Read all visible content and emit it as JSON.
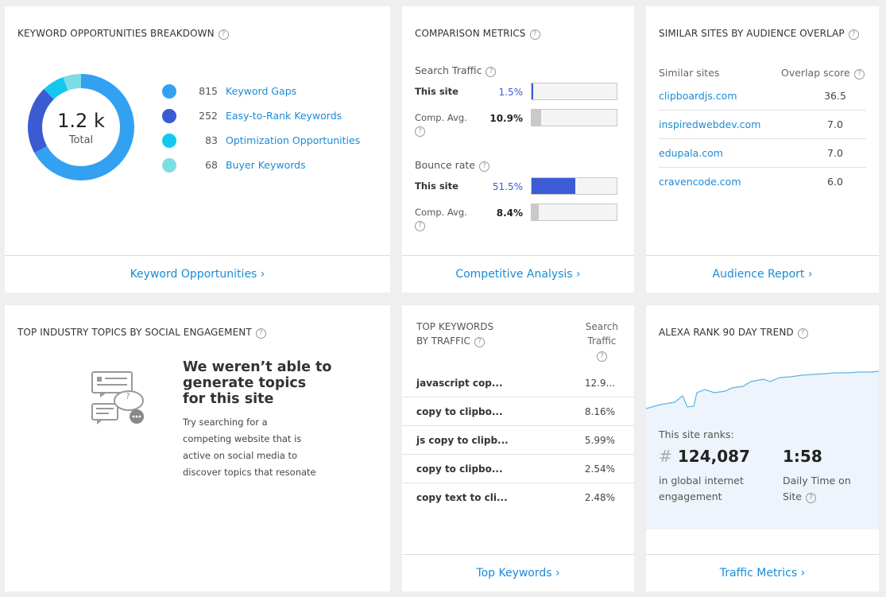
{
  "kw_breakdown": {
    "title": "KEYWORD OPPORTUNITIES BREAKDOWN",
    "total_value": "1.2 k",
    "total_label": "Total",
    "items": [
      {
        "count": "815",
        "label": "Keyword Gaps",
        "color": "#33a1f2"
      },
      {
        "count": "252",
        "label": "Easy-to-Rank Keywords",
        "color": "#3a5bd1"
      },
      {
        "count": "83",
        "label": "Optimization Opportunities",
        "color": "#13c8ee"
      },
      {
        "count": "68",
        "label": "Buyer Keywords",
        "color": "#7ddde5"
      }
    ],
    "footer": "Keyword Opportunities ›"
  },
  "comparison": {
    "title": "COMPARISON METRICS",
    "search_traffic": {
      "label": "Search Traffic",
      "this_site_label": "This site",
      "this_site_value": "1.5%",
      "this_site_fraction": 0.015,
      "avg_label": "Comp. Avg.",
      "avg_value": "10.9%",
      "avg_fraction": 0.109
    },
    "bounce_rate": {
      "label": "Bounce rate",
      "this_site_label": "This site",
      "this_site_value": "51.5%",
      "this_site_fraction": 0.515,
      "avg_label": "Comp. Avg.",
      "avg_value": "8.4%",
      "avg_fraction": 0.084
    },
    "footer": "Competitive Analysis ›",
    "colors": {
      "this_site": "#3d5bd6",
      "avg": "#c9c9c9"
    }
  },
  "similar_sites": {
    "title": "SIMILAR SITES BY AUDIENCE OVERLAP",
    "col_site": "Similar sites",
    "col_score": "Overlap score",
    "rows": [
      {
        "site": "clipboardjs.com",
        "score": "36.5"
      },
      {
        "site": "inspiredwebdev.com",
        "score": "7.0"
      },
      {
        "site": "edupala.com",
        "score": "7.0"
      },
      {
        "site": "cravencode.com",
        "score": "6.0"
      }
    ],
    "footer": "Audience Report ›"
  },
  "topics": {
    "title": "TOP INDUSTRY TOPICS BY SOCIAL ENGAGEMENT",
    "heading_line1": "We weren’t able to",
    "heading_line2": "generate topics",
    "heading_line3": "for this site",
    "body_line1": "Try searching for a",
    "body_line2": "competing website that is",
    "body_line3": "active on social media to",
    "body_line4": "discover topics that resonate"
  },
  "top_keywords": {
    "title_line1": "TOP KEYWORDS",
    "title_line2": "BY TRAFFIC",
    "col_line1": "Search",
    "col_line2": "Traffic",
    "rows": [
      {
        "keyword": "javascript cop...",
        "value": "12.9..."
      },
      {
        "keyword": "copy to clipbo...",
        "value": "8.16%"
      },
      {
        "keyword": "js copy to clipb...",
        "value": "5.99%"
      },
      {
        "keyword": "copy to clipbo...",
        "value": "2.54%"
      },
      {
        "keyword": "copy text to cli...",
        "value": "2.48%"
      }
    ],
    "footer": "Top Keywords ›"
  },
  "alexa": {
    "title": "ALEXA RANK 90 DAY TREND",
    "ranks_label": "This site ranks:",
    "hash": "#",
    "rank_value": "124,087",
    "rank_desc_line1": "in global internet",
    "rank_desc_line2": "engagement",
    "time_value": "1:58",
    "time_desc_line1": "Daily Time on",
    "time_desc_line2": "Site",
    "footer": "Traffic Metrics ›"
  }
}
